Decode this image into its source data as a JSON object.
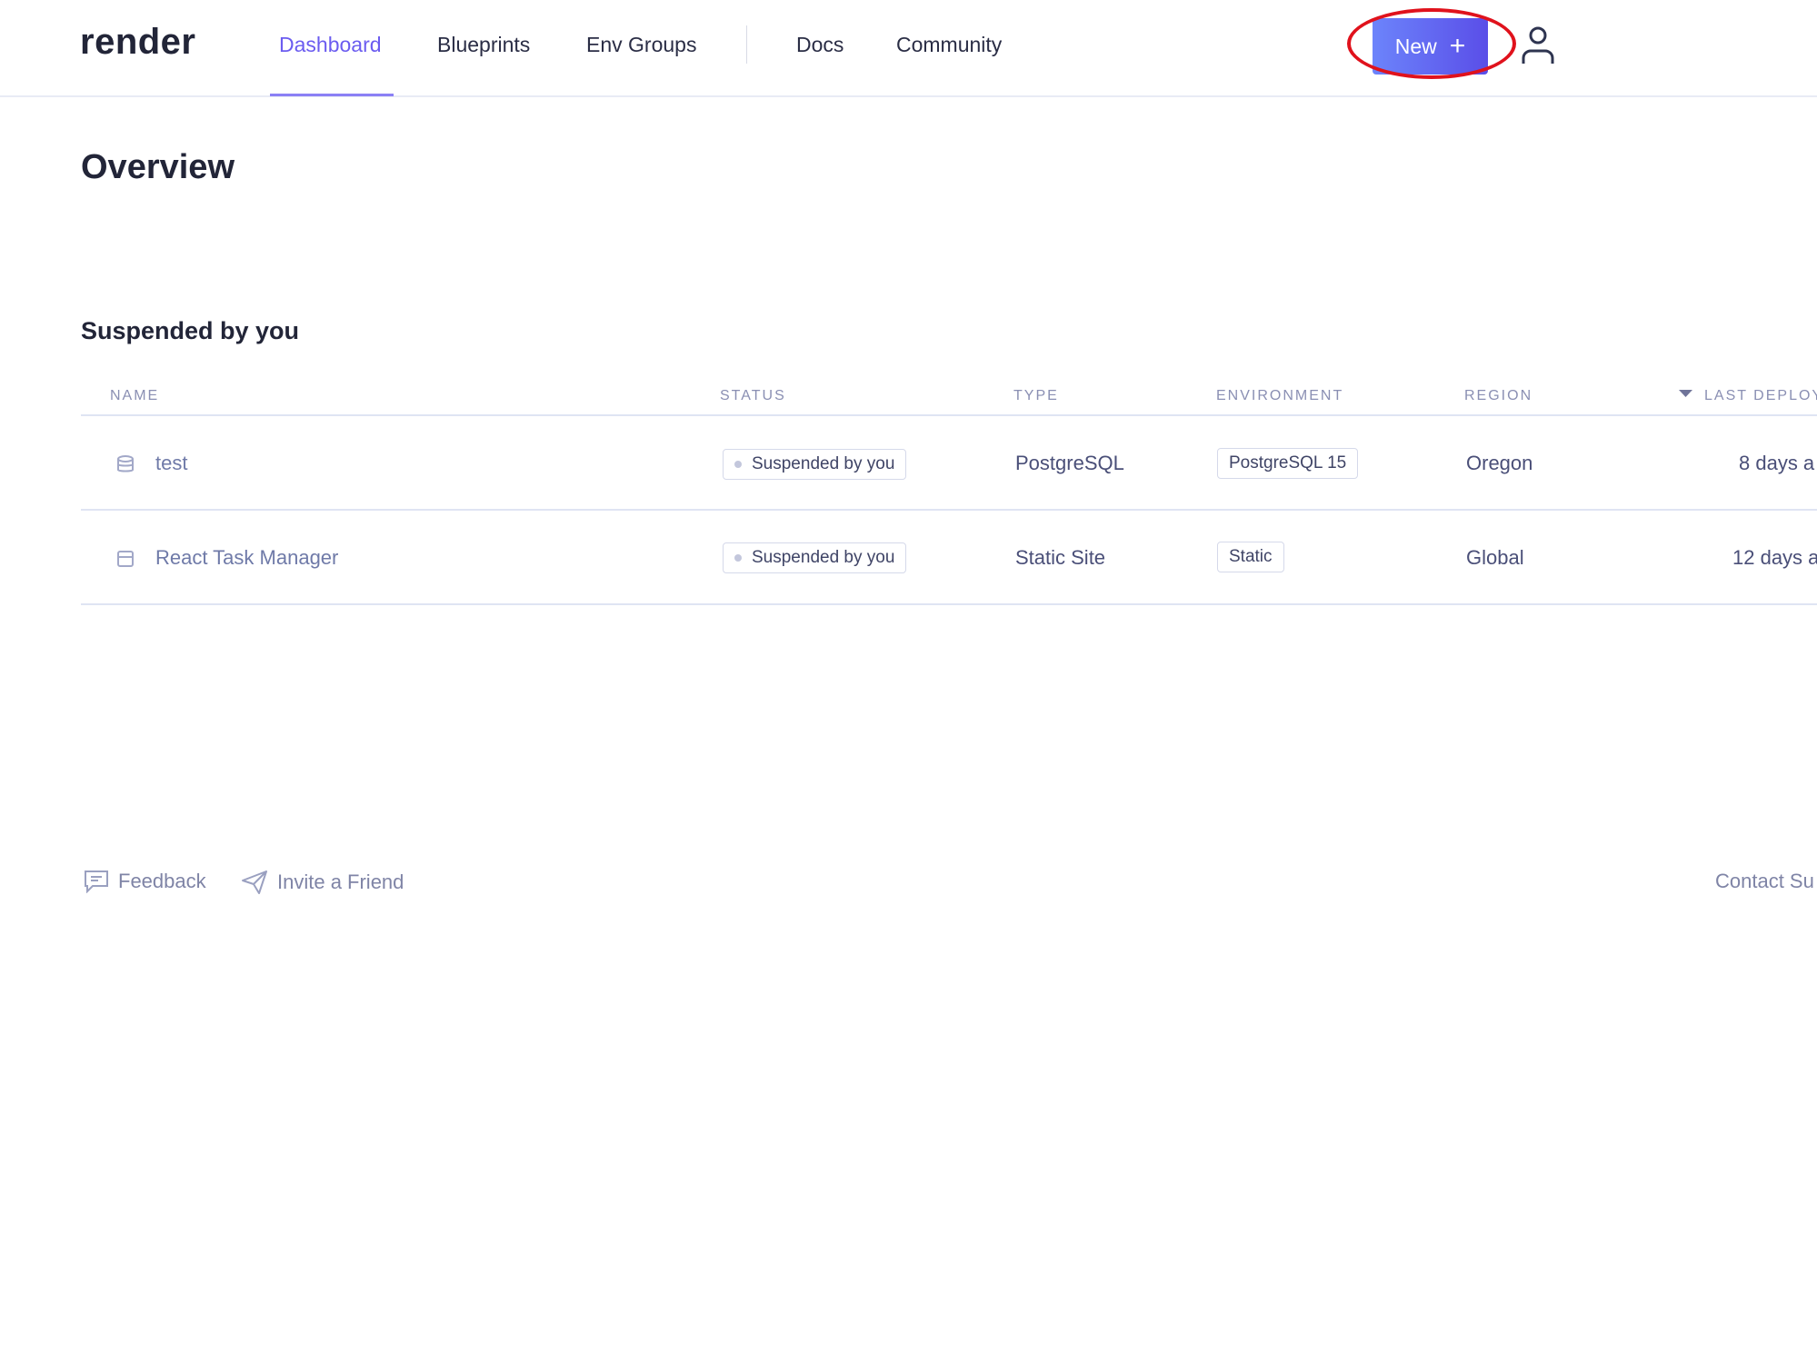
{
  "header": {
    "logo": "render",
    "nav": [
      "Dashboard",
      "Blueprints",
      "Env Groups",
      "Docs",
      "Community"
    ],
    "active": "Dashboard",
    "new_button": "New",
    "new_icon": "plus-icon",
    "accent": "#6b5cf0"
  },
  "page": {
    "title": "Overview",
    "section_title": "Suspended by you"
  },
  "table": {
    "columns": [
      "NAME",
      "STATUS",
      "TYPE",
      "ENVIRONMENT",
      "REGION",
      "LAST DEPLOY"
    ],
    "sort_column": "LAST DEPLOY",
    "rows": [
      {
        "icon": "database-icon",
        "name": "test",
        "status": "Suspended by you",
        "type": "PostgreSQL",
        "environment": "PostgreSQL 15",
        "region": "Oregon",
        "last_deploy": "8 days a"
      },
      {
        "icon": "static-site-icon",
        "name": "React Task Manager",
        "status": "Suspended by you",
        "type": "Static Site",
        "environment": "Static",
        "region": "Global",
        "last_deploy": "12 days a"
      }
    ]
  },
  "footer": {
    "feedback": "Feedback",
    "invite": "Invite a Friend",
    "contact": "Contact Su"
  }
}
